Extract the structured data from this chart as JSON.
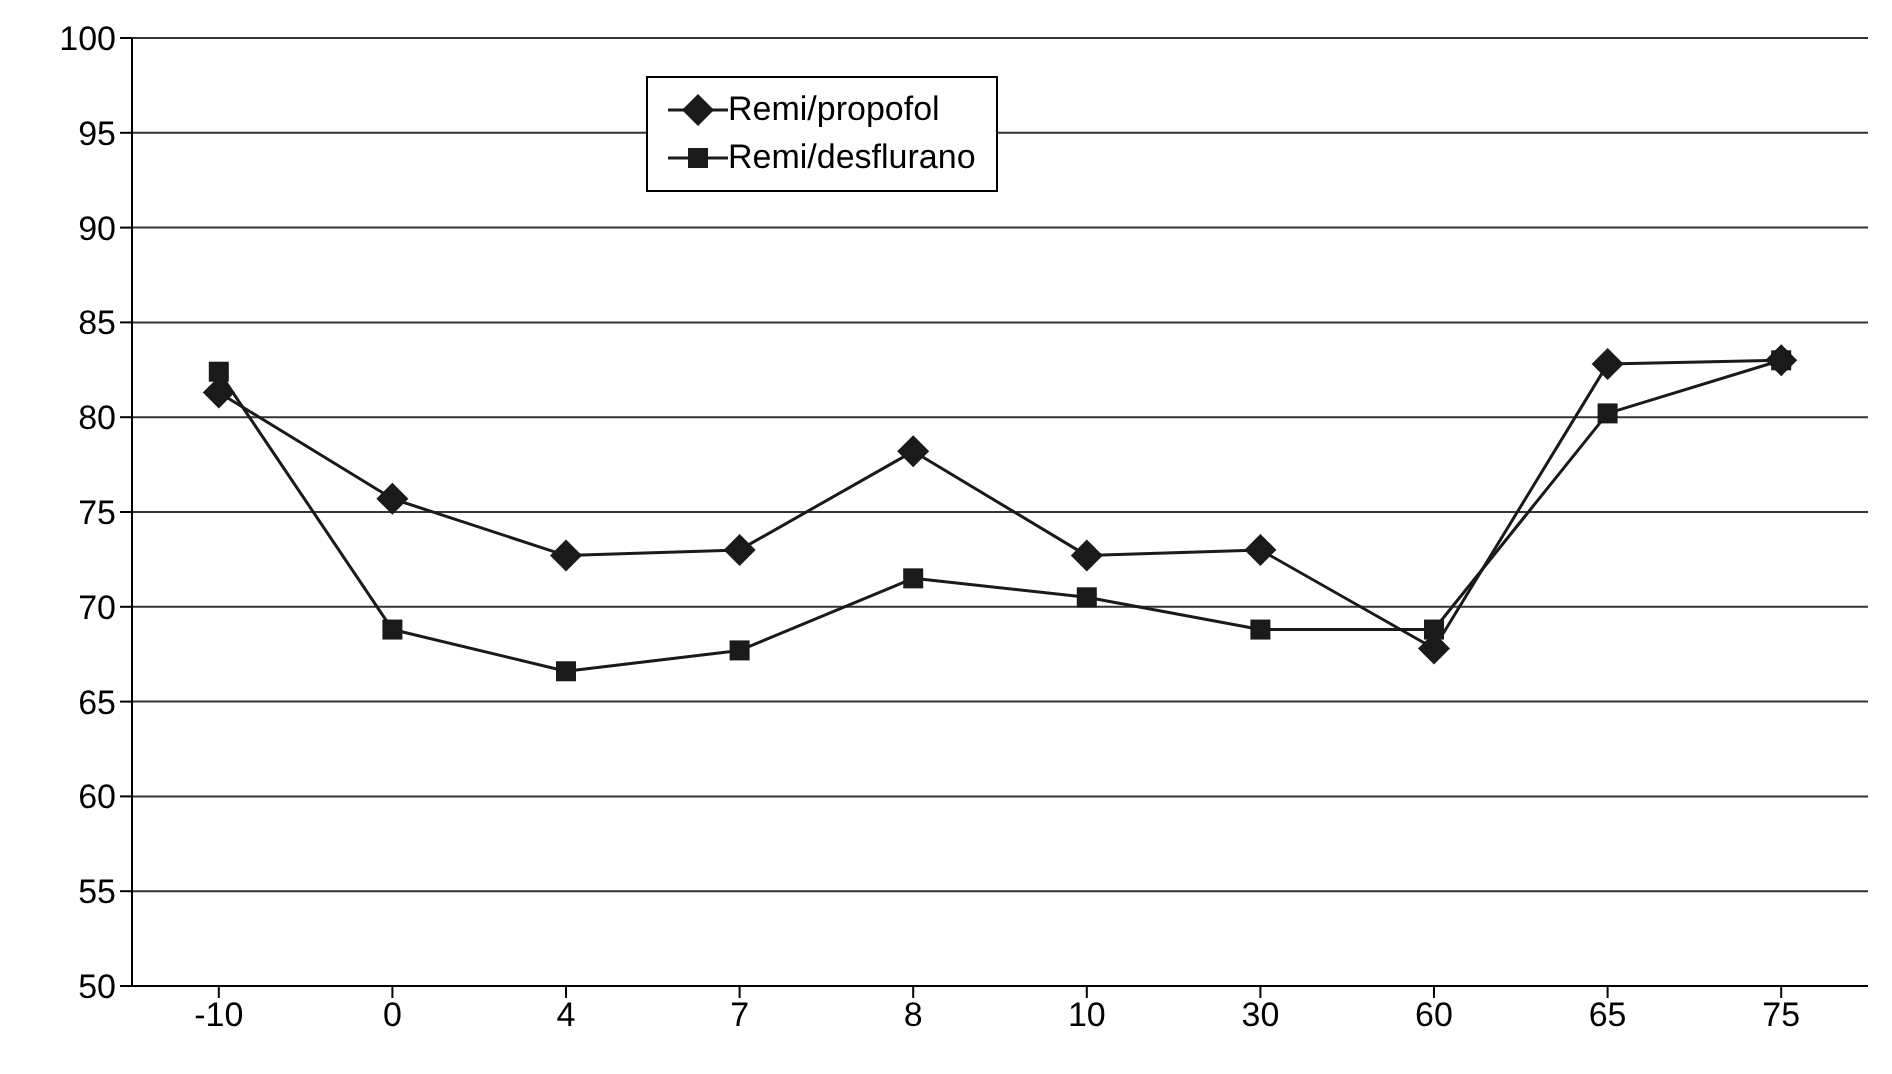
{
  "chart_data": {
    "type": "line",
    "categories": [
      "-10",
      "0",
      "4",
      "7",
      "8",
      "10",
      "30",
      "60",
      "65",
      "75"
    ],
    "series": [
      {
        "name": "Remi/propofol",
        "color": "#1a1a1a",
        "marker": "diamond",
        "values": [
          81.3,
          75.7,
          72.7,
          73.0,
          78.2,
          72.7,
          73.0,
          67.8,
          82.8,
          83.0
        ]
      },
      {
        "name": "Remi/desflurano",
        "color": "#1a1a1a",
        "marker": "square",
        "values": [
          82.4,
          68.8,
          66.6,
          67.7,
          71.5,
          70.5,
          68.8,
          68.8,
          80.2,
          83.0
        ]
      }
    ],
    "ylim": [
      50,
      100
    ],
    "yticks": [
      50,
      55,
      60,
      65,
      70,
      75,
      80,
      85,
      90,
      95,
      100
    ],
    "grid": "y",
    "legend": "top",
    "line_style": "solid"
  }
}
